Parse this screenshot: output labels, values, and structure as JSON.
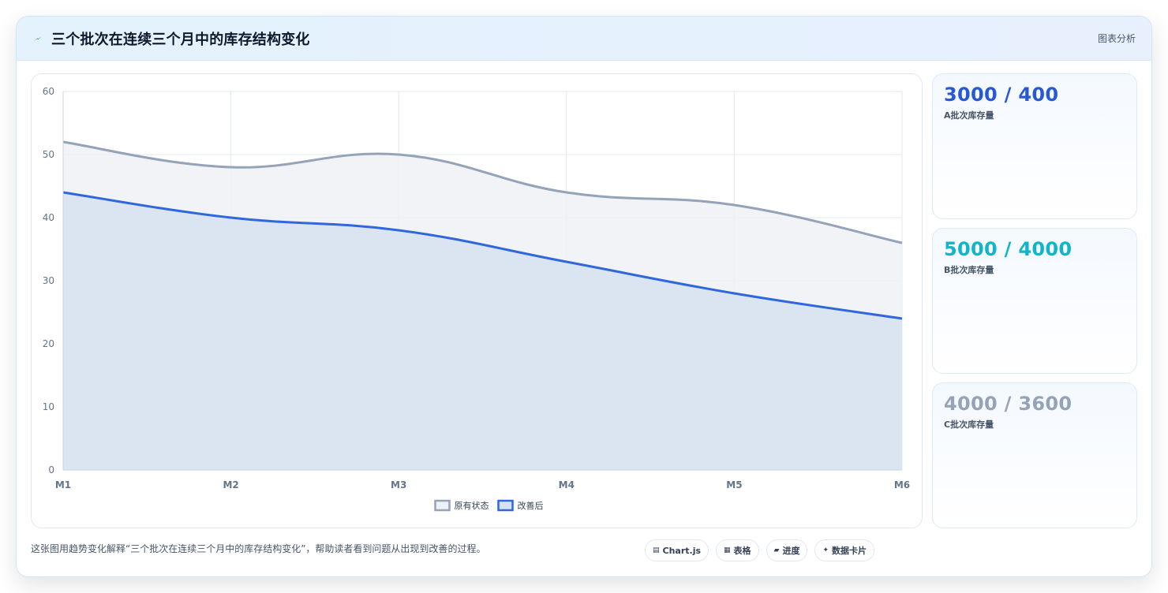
{
  "header": {
    "title": "三个批次在连续三个月中的库存结构变化",
    "tag": "图表分析",
    "icon": "bolt-icon"
  },
  "chart_data": {
    "type": "area",
    "title": "",
    "xlabel": "",
    "ylabel": "",
    "categories": [
      "M1",
      "M2",
      "M3",
      "M4",
      "M5",
      "M6"
    ],
    "ylim": [
      0,
      60
    ],
    "yticks": [
      0,
      10,
      20,
      30,
      40,
      50,
      60
    ],
    "grid": true,
    "legend": "bottom",
    "series": [
      {
        "name": "原有状态",
        "values": [
          52,
          48,
          50,
          44,
          42,
          36
        ],
        "color": "#94a3b8",
        "fill": "#eef1f5"
      },
      {
        "name": "改善后",
        "values": [
          44,
          40,
          38,
          33,
          28,
          24
        ],
        "color": "#2f67dc",
        "fill": "#d7e2f1"
      }
    ]
  },
  "stats": [
    {
      "value": "3000 / 400",
      "label": "A批次库存量",
      "color": "#2858d6"
    },
    {
      "value": "5000 / 4000",
      "label": "B批次库存量",
      "color": "#0fb5c9"
    },
    {
      "value": "4000 / 3600",
      "label": "C批次库存量",
      "color": "#94a3b8"
    }
  ],
  "footer": {
    "note": "这张图用趋势变化解释“三个批次在连续三个月中的库存结构变化”，帮助读者看到问题从出现到改善的过程。",
    "chips": [
      {
        "icon": "▤",
        "label": "Chart.js",
        "icon_name": "chart-icon"
      },
      {
        "icon": "▦",
        "label": "表格",
        "icon_name": "table-icon"
      },
      {
        "icon": "▰",
        "label": "进度",
        "icon_name": "progress-icon"
      },
      {
        "icon": "✦",
        "label": "数据卡片",
        "icon_name": "sparkle-icon"
      }
    ]
  }
}
